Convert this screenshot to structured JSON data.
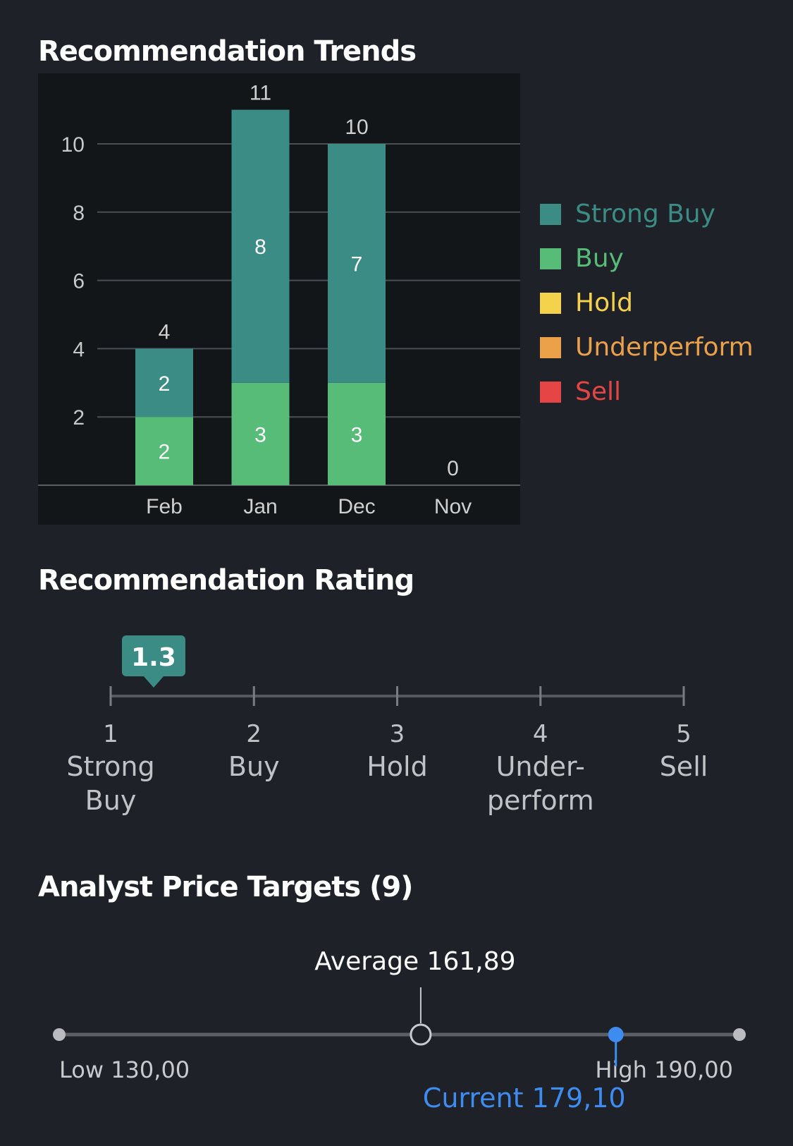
{
  "trends": {
    "title": "Recommendation Trends",
    "legend": [
      {
        "label": "Strong Buy",
        "color": "#3b8c85"
      },
      {
        "label": "Buy",
        "color": "#57bc78"
      },
      {
        "label": "Hold",
        "color": "#f5d24c"
      },
      {
        "label": "Underperform",
        "color": "#eba14a"
      },
      {
        "label": "Sell",
        "color": "#e54545"
      }
    ]
  },
  "chart_data": {
    "type": "bar",
    "stacked": true,
    "categories": [
      "Feb",
      "Jan",
      "Dec",
      "Nov"
    ],
    "series": [
      {
        "name": "Strong Buy",
        "values": [
          2,
          8,
          7,
          0
        ],
        "color": "#3b8c85"
      },
      {
        "name": "Buy",
        "values": [
          2,
          3,
          3,
          0
        ],
        "color": "#57bc78"
      },
      {
        "name": "Hold",
        "values": [
          0,
          0,
          0,
          0
        ],
        "color": "#f5d24c"
      },
      {
        "name": "Underperform",
        "values": [
          0,
          0,
          0,
          0
        ],
        "color": "#eba14a"
      },
      {
        "name": "Sell",
        "values": [
          0,
          0,
          0,
          0
        ],
        "color": "#e54545"
      }
    ],
    "totals": [
      4,
      11,
      10,
      0
    ],
    "y_ticks": [
      2,
      4,
      6,
      8,
      10
    ],
    "ylim": [
      0,
      11
    ],
    "grid": true,
    "legend": "right"
  },
  "rating": {
    "title": "Recommendation Rating",
    "value": 1.3,
    "value_label": "1.3",
    "accent": "#3b8c85",
    "scale": [
      {
        "num": "1",
        "line1": "Strong",
        "line2": "Buy"
      },
      {
        "num": "2",
        "line1": "Buy",
        "line2": ""
      },
      {
        "num": "3",
        "line1": "Hold",
        "line2": ""
      },
      {
        "num": "4",
        "line1": "Under-",
        "line2": "perform"
      },
      {
        "num": "5",
        "line1": "Sell",
        "line2": ""
      }
    ]
  },
  "targets": {
    "title": "Analyst Price Targets (9)",
    "low": 130.0,
    "high": 190.0,
    "average": 161.89,
    "current": 179.1,
    "average_label": "Average 161,89",
    "low_label": "Low 130,00",
    "high_label": "High 190,00",
    "current_label": "Current 179,10",
    "current_color": "#3f8cf0"
  }
}
